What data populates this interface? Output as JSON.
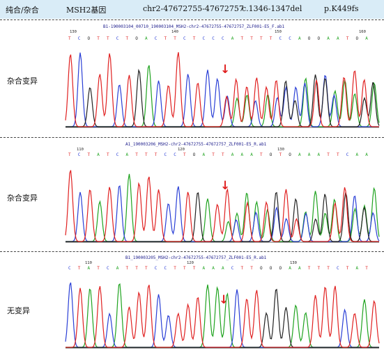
{
  "header": {
    "col1": "纯合/杂合",
    "col2": "MSH2基因",
    "col3": "chr2-47672755-47672757",
    "col4": "c.1346-1347del",
    "col5": "p.K449fs"
  },
  "panels": [
    {
      "label": "杂合变异",
      "filename": "B1-190003104_00710_190003104_MSH2-chr2-47672755-47672757_ZLF001-E5_F.ab1",
      "bases": "TCOTTCTOACTTCTCCCATTTTCCAOOAATOA",
      "tick_labels": [
        "130",
        "140",
        "150",
        "160"
      ]
    },
    {
      "label": "杂合变异",
      "filename": "A1_190003206_MSH2-chr2-47672755-47672757_ZLF001-E5_R.ab1",
      "bases": "TCTATCATTTCCTOATTAAATOTOAAATTCAA",
      "tick_labels": [
        "110",
        "120",
        "130"
      ]
    },
    {
      "label": "无变异",
      "filename": "B1_190003205_MSH2-chr2-47672755-47672757_ZLF001-E5_R.ab1",
      "bases": "CTATCATTTCCTTTAAACTTOOOAATTTCTAT",
      "tick_labels": [
        "110",
        "120",
        "130"
      ]
    }
  ],
  "colors": {
    "A": "#1fa31f",
    "C": "#2a3fd6",
    "G": "#222222",
    "T": "#e02020",
    "header_bg": "#d9ecf7"
  },
  "arrow_glyph": "↓"
}
